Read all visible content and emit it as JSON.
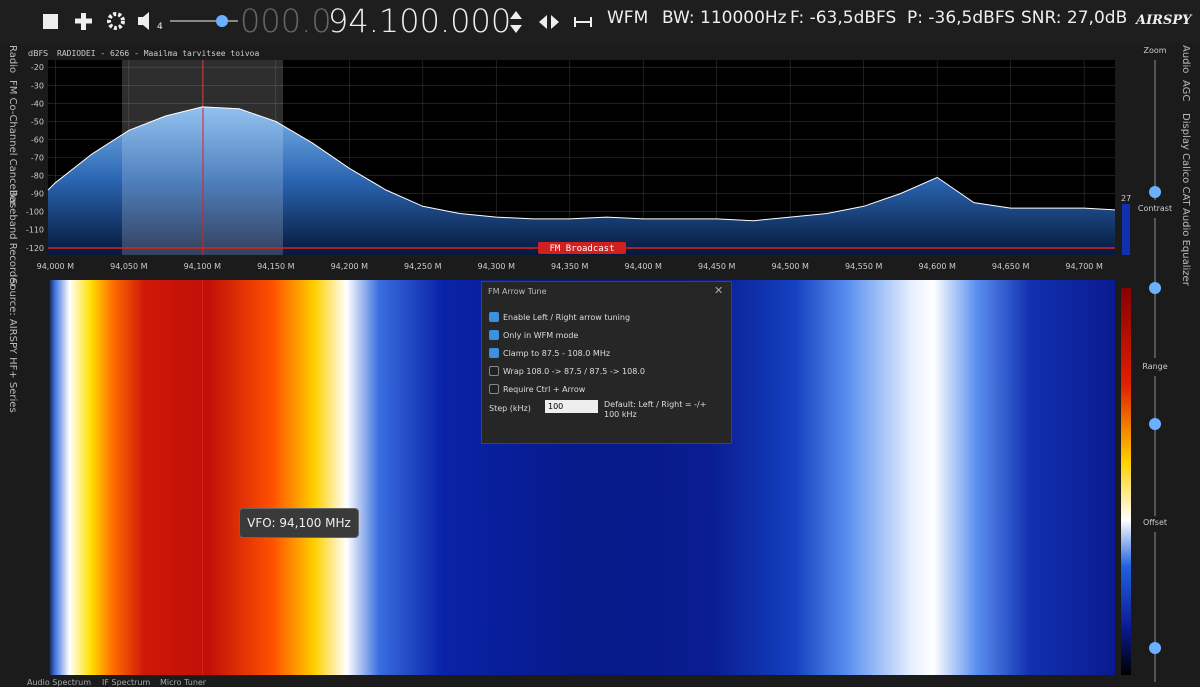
{
  "toolbar": {
    "freq_prefix": "000.0",
    "freq_main": "94.100.000",
    "volume_level": "4",
    "mode": "WFM",
    "bandwidth": "BW: 110000Hz",
    "floor": "F: -63,5dBFS",
    "peak": "P: -36,5dBFS",
    "snr": "SNR: 27,0dB",
    "logo": "AIRSPY"
  },
  "left_tabs": [
    "Radio",
    "FM Co-Channel Canceller",
    "Baseband Recorder",
    "Source: AIRSPY HF+ Series"
  ],
  "right_tabs": [
    "Audio",
    "AGC",
    "Display",
    "Calico CAT",
    "Audio Equalizer"
  ],
  "sliders": [
    "Zoom",
    "Contrast",
    "Range",
    "Offset"
  ],
  "spectrum": {
    "unit": "dBFS",
    "station": "RADIODEI - 6266 - Maailma tarvitsee toivoa",
    "band_label": "FM Broadcast",
    "level_marker": "27",
    "xlim": [
      93.995,
      94.721
    ],
    "ylim": [
      -124,
      -16
    ],
    "yticks": [
      -20,
      -30,
      -40,
      -50,
      -60,
      -70,
      -80,
      -90,
      -100,
      -110,
      -120
    ],
    "xticks": [
      {
        "value": 94.0,
        "label": "94,000 M"
      },
      {
        "value": 94.05,
        "label": "94,050 M"
      },
      {
        "value": 94.1,
        "label": "94,100 M"
      },
      {
        "value": 94.15,
        "label": "94,150 M"
      },
      {
        "value": 94.2,
        "label": "94,200 M"
      },
      {
        "value": 94.25,
        "label": "94,250 M"
      },
      {
        "value": 94.3,
        "label": "94,300 M"
      },
      {
        "value": 94.35,
        "label": "94,350 M"
      },
      {
        "value": 94.4,
        "label": "94,400 M"
      },
      {
        "value": 94.45,
        "label": "94,450 M"
      },
      {
        "value": 94.5,
        "label": "94,500 M"
      },
      {
        "value": 94.55,
        "label": "94,550 M"
      },
      {
        "value": 94.6,
        "label": "94,600 M"
      },
      {
        "value": 94.65,
        "label": "94,650 M"
      },
      {
        "value": 94.7,
        "label": "94,700 M"
      }
    ],
    "trace": {
      "color": "#ffffff",
      "x": [
        93.995,
        94.0,
        94.025,
        94.05,
        94.075,
        94.1,
        94.125,
        94.15,
        94.175,
        94.2,
        94.225,
        94.25,
        94.275,
        94.3,
        94.325,
        94.35,
        94.375,
        94.4,
        94.425,
        94.45,
        94.475,
        94.5,
        94.525,
        94.55,
        94.575,
        94.6,
        94.625,
        94.65,
        94.675,
        94.7,
        94.721
      ],
      "values": [
        -88,
        -84,
        -68,
        -55,
        -47,
        -42,
        -43,
        -50,
        -62,
        -76,
        -88,
        -97,
        -101,
        -103,
        -104,
        -104,
        -103,
        -104,
        -104,
        -104,
        -105,
        -103,
        -101,
        -97,
        -90,
        -81,
        -95,
        -98,
        -98,
        -98,
        -99
      ]
    }
  },
  "dialog": {
    "title": "FM Arrow Tune",
    "options": [
      {
        "label": "Enable Left / Right arrow tuning",
        "checked": true
      },
      {
        "label": "Only in WFM mode",
        "checked": true
      },
      {
        "label": "Clamp to 87.5 - 108.0 MHz",
        "checked": true
      },
      {
        "label": "Wrap 108.0 -> 87.5 / 87.5 -> 108.0",
        "checked": false
      },
      {
        "label": "Require Ctrl + Arrow",
        "checked": false
      }
    ],
    "step_label": "Step (kHz)",
    "step_value": "100",
    "hint": "Default: Left / Right = -/+ 100 kHz"
  },
  "vfo_tooltip": "VFO: 94,100 MHz",
  "bottom_tabs": [
    "Audio Spectrum",
    "IF Spectrum",
    "Micro Tuner"
  ]
}
